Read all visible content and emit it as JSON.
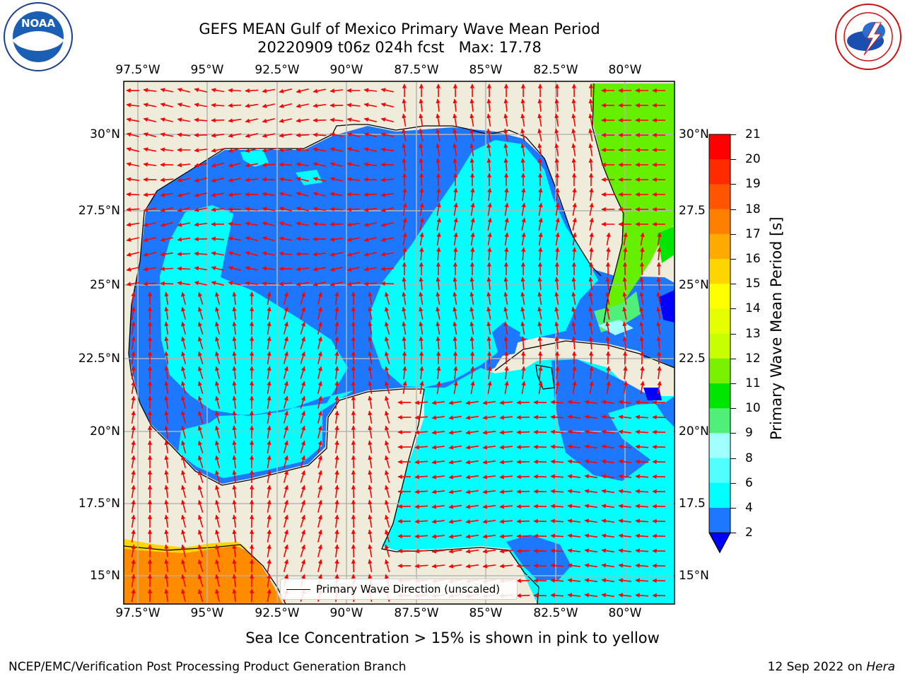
{
  "title": {
    "line1": "GEFS MEAN Gulf of Mexico Primary Wave Mean Period",
    "line2": "20220909 t06z 024h fcst   Max: 17.78"
  },
  "logos": {
    "noaa_text": "NOAA",
    "noaa_ring": "NATIONAL OCEANIC AND ATMOSPHERIC ADMINISTRATION · U.S. DEPARTMENT OF COMMERCE",
    "nws_ring": "NATIONAL WEATHER SERVICE"
  },
  "map": {
    "lon_labels": [
      "97.5°W",
      "95°W",
      "92.5°W",
      "90°W",
      "87.5°W",
      "85°W",
      "82.5°W",
      "80°W"
    ],
    "lat_labels_left": [
      "30°N",
      "27.5°N",
      "25°N",
      "22.5°N",
      "20°N",
      "17.5°N",
      "15°N"
    ],
    "lat_labels_right": [
      "30°N",
      "27.5",
      "25°N",
      "22.5",
      "20°N",
      "17.5",
      "15°N"
    ],
    "grid": true,
    "land_color": "#efecdc",
    "arrow_color": "#ff0000"
  },
  "legend": {
    "label": "Primary Wave Direction (unscaled)"
  },
  "colorbar": {
    "label": "Primary Wave Mean Period [s]",
    "ticks": [
      "21",
      "20",
      "19",
      "18",
      "17",
      "16",
      "15",
      "14",
      "13",
      "12",
      "11",
      "10",
      "9",
      "8",
      "6",
      "4",
      "2"
    ],
    "colors_top_to_bottom": [
      "#ff0000",
      "#ff2a00",
      "#ff5500",
      "#ff8000",
      "#ffaa00",
      "#ffd500",
      "#ffff00",
      "#e6ff00",
      "#c8ff00",
      "#78f000",
      "#00e600",
      "#50f078",
      "#a0ffff",
      "#50ffff",
      "#00ffff",
      "#1e78ff",
      "#0000ff"
    ]
  },
  "subtitle": "Sea Ice Concentration > 15% is shown in pink to yellow",
  "footer": {
    "left": "NCEP/EMC/Verification Post Processing Product Generation Branch",
    "right_prefix": "12 Sep 2022 on ",
    "right_host": "Hera"
  }
}
